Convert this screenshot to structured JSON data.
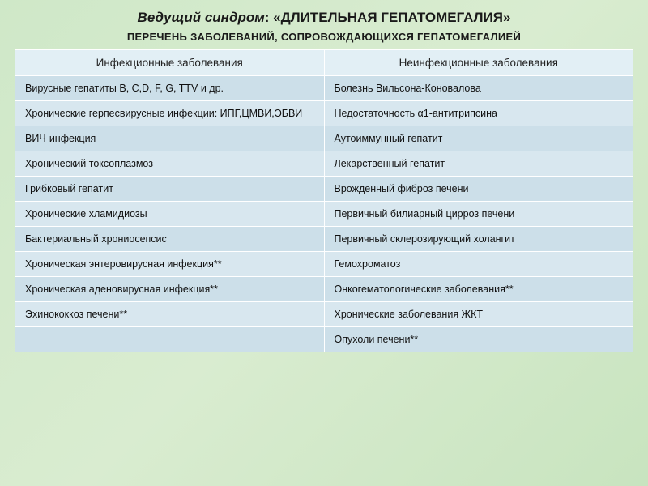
{
  "title_lead": "Ведущий синдром",
  "title_main": ": «ДЛИТЕЛЬНАЯ ГЕПАТОМЕГАЛИЯ»",
  "subtitle": "ПЕРЕЧЕНЬ ЗАБОЛЕВАНИЙ, СОПРОВОЖДАЮЩИХСЯ ГЕПАТОМЕГАЛИЕЙ",
  "headers": {
    "col1": "Инфекционные заболевания",
    "col2": "Неинфекционные заболевания"
  },
  "rows": [
    {
      "c1": "Вирусные гепатиты B, C,D, F, G, TTV и др.",
      "c2": "Болезнь Вильсона-Коновалова"
    },
    {
      "c1": "Хронические герпесвирусные инфекции: ИПГ,ЦМВИ,ЭБВИ",
      "c2": "Недостаточность α1-антитрипсина"
    },
    {
      "c1": "ВИЧ-инфекция",
      "c2": "Аутоиммунный гепатит"
    },
    {
      "c1": " Хронический токсоплазмоз",
      "c2": "Лекарственный гепатит"
    },
    {
      "c1": "Грибковый гепатит",
      "c2": "Врожденный фиброз печени"
    },
    {
      "c1": " Хронические хламидиозы",
      "c2": "Первичный билиарный цирроз печени"
    },
    {
      "c1": "Бактериальный хрониосепсис",
      "c2": "Первичный склерозирующий холангит"
    },
    {
      "c1": "Хроническая энтеровирусная инфекция**",
      "c2": "Гемохроматоз"
    },
    {
      "c1": "Хроническая аденовирусная инфекция**",
      "c2": "Онкогематологические заболевания**"
    },
    {
      "c1": "Эхинококкоз печени**",
      "c2": "Хронические заболевания ЖКТ"
    },
    {
      "c1": "",
      "c2": "Опухоли печени**"
    }
  ],
  "style": {
    "background_gradient": [
      "#cfe8c8",
      "#d9ecd0",
      "#c8e4bf"
    ],
    "header_bg": "#e2eff5",
    "row_odd_bg": "#ccdfe9",
    "row_even_bg": "#d8e7ef",
    "border_color": "#ffffff",
    "title_fontsize": 17,
    "subtitle_fontsize": 13,
    "th_fontsize": 13.5,
    "td_fontsize": 12.5,
    "text_color": "#111111"
  }
}
